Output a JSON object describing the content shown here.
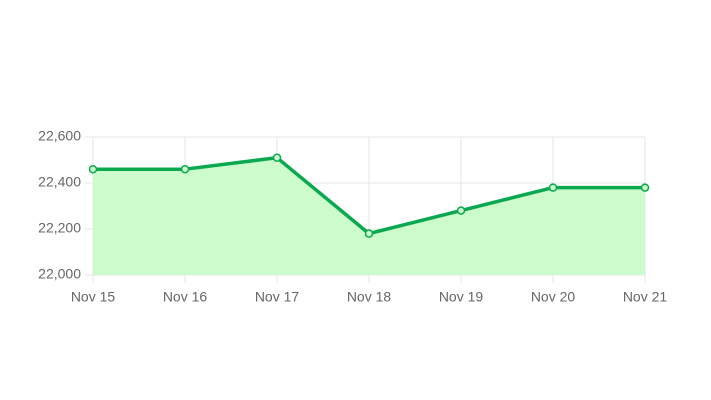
{
  "chart_data": {
    "type": "line",
    "categories": [
      "Nov 15",
      "Nov 16",
      "Nov 17",
      "Nov 18",
      "Nov 19",
      "Nov 20",
      "Nov 21"
    ],
    "values": [
      22460,
      22460,
      22510,
      22180,
      22280,
      22380,
      22380
    ],
    "color": "#0aa84f",
    "area_color": "#ccfccc",
    "ylim": [
      22000,
      22600
    ],
    "yticks": [
      {
        "value": 22000,
        "label": "22,000"
      },
      {
        "value": 22200,
        "label": "22,200"
      },
      {
        "value": 22400,
        "label": "22,400"
      },
      {
        "value": 22600,
        "label": "22,600"
      }
    ],
    "grid": true
  }
}
